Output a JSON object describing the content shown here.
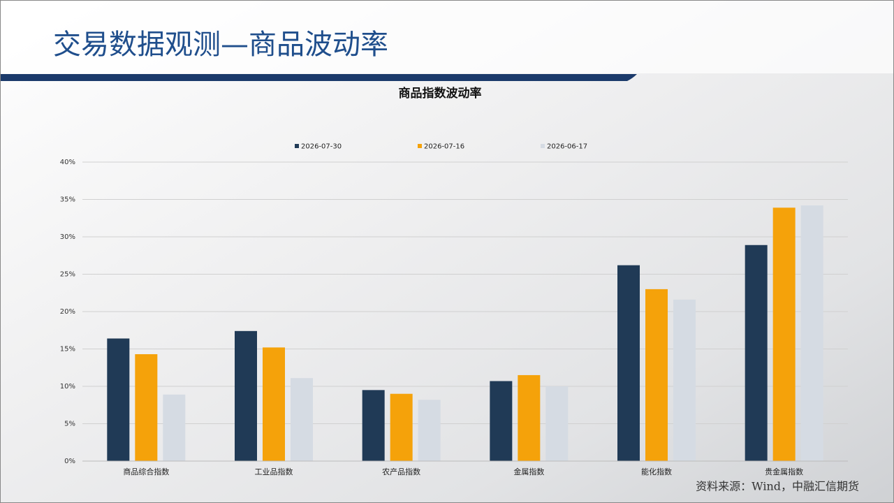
{
  "header": {
    "title": "交易数据观测—商品波动率"
  },
  "chart_data": {
    "type": "bar",
    "title": "商品指数波动率",
    "categories": [
      "商品综合指数",
      "工业品指数",
      "农产品指数",
      "金属指数",
      "能化指数",
      "贵金属指数"
    ],
    "series": [
      {
        "name": "2026-07-30",
        "color": "#203a56",
        "values": [
          16.4,
          17.4,
          9.5,
          10.7,
          26.2,
          28.9
        ]
      },
      {
        "name": "2026-07-16",
        "color": "#f5a20a",
        "values": [
          14.3,
          15.2,
          9.0,
          11.5,
          23.0,
          33.9
        ]
      },
      {
        "name": "2026-06-17",
        "color": "#d5dbe3",
        "values": [
          8.9,
          11.1,
          8.2,
          10.0,
          21.6,
          34.2
        ]
      }
    ],
    "ylim": [
      0,
      40
    ],
    "yticks": [
      {
        "value": 0,
        "label": "0%"
      },
      {
        "value": 5,
        "label": "5%"
      },
      {
        "value": 10,
        "label": "10%"
      },
      {
        "value": 15,
        "label": "15%"
      },
      {
        "value": 20,
        "label": "20%"
      },
      {
        "value": 25,
        "label": "25%"
      },
      {
        "value": 30,
        "label": "30%"
      },
      {
        "value": 35,
        "label": "35%"
      },
      {
        "value": 40,
        "label": "40%"
      }
    ],
    "grid": true,
    "legend": "top"
  },
  "source": "资料来源：Wind，中融汇信期货"
}
